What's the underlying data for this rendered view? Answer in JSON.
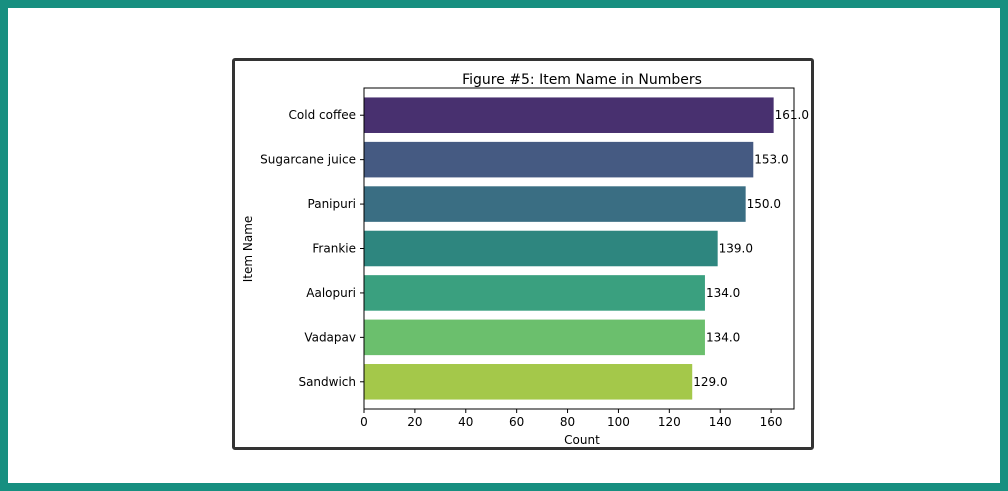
{
  "chart_data": {
    "type": "bar",
    "orientation": "horizontal",
    "title": "Figure #5: Item Name in Numbers",
    "xlabel": "Count",
    "ylabel": "Item Name",
    "categories": [
      "Cold coffee",
      "Sugarcane juice",
      "Panipuri",
      "Frankie",
      "Aalopuri",
      "Vadapav",
      "Sandwich"
    ],
    "values": [
      161,
      153,
      150,
      139,
      134,
      134,
      129
    ],
    "data_labels": [
      "161.0",
      "153.0",
      "150.0",
      "139.0",
      "134.0",
      "134.0",
      "129.0"
    ],
    "xlim": [
      0,
      169
    ],
    "xticks": [
      "0",
      "20",
      "40",
      "60",
      "80",
      "100",
      "120",
      "140",
      "160"
    ],
    "grid": false,
    "colors": [
      "#48306f",
      "#455a82",
      "#3a6e83",
      "#2e867f",
      "#3aa07f",
      "#6bbf6d",
      "#a4c84a"
    ]
  },
  "frame": {
    "border_color": "#178f80"
  }
}
